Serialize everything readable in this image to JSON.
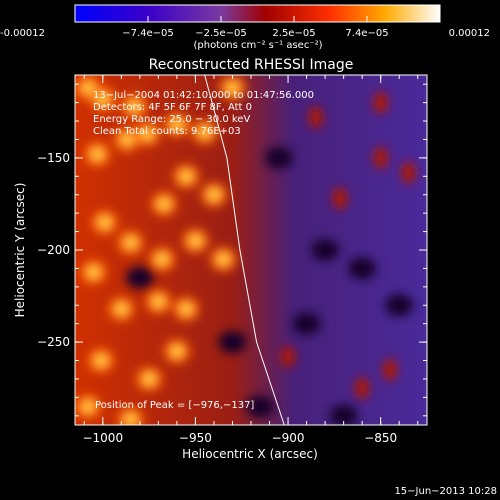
{
  "colorbar": {
    "tick_labels": [
      "-0.00012",
      "−7.4e−05",
      "−2.5e−05",
      "2.5e−05",
      "7.4e−05",
      "0.00012"
    ],
    "units": "(photons cm⁻² s⁻¹ asec⁻²)",
    "range": [
      -0.00012,
      0.00012
    ]
  },
  "chart_data": {
    "type": "heatmap",
    "title": "Reconstructed RHESSI Image",
    "xlabel": "Heliocentric X (arcsec)",
    "ylabel": "Heliocentric Y (arcsec)",
    "xlim": [
      -1015,
      -825
    ],
    "ylim": [
      -295,
      -105
    ],
    "x_ticks": [
      -1000,
      -950,
      -900,
      -850
    ],
    "y_ticks": [
      -250,
      -200,
      -150
    ],
    "x_tick_labels": [
      "−1000",
      "−950",
      "−900",
      "−850"
    ],
    "y_tick_labels": [
      "−250",
      "−200",
      "−150"
    ],
    "annotations": [
      "13−Jul−2004 01:42:10.000 to 01:47:56.000",
      "Detectors: 4F 5F 6F 7F 8F, Att 0",
      "Energy Range: 25.0 − 30.0 keV",
      "Clean    Total counts: 9.76E+03"
    ],
    "peak_label": "Position of Peak = [−976,−137]",
    "peak": [
      -976,
      -137
    ],
    "limb": [
      [
        -945,
        -105
      ],
      [
        -933,
        -150
      ],
      [
        -926,
        -200
      ],
      [
        -917,
        -250
      ],
      [
        -902,
        -295
      ]
    ],
    "hot_blobs": [
      [
        -1008,
        -112
      ],
      [
        -1000,
        -118
      ],
      [
        -983,
        -122
      ],
      [
        -976,
        -137
      ],
      [
        -987,
        -140
      ],
      [
        -1003,
        -148
      ],
      [
        -960,
        -132
      ],
      [
        -945,
        -136
      ],
      [
        -955,
        -160
      ],
      [
        -967,
        -175
      ],
      [
        -940,
        -170
      ],
      [
        -999,
        -185
      ],
      [
        -985,
        -196
      ],
      [
        -968,
        -205
      ],
      [
        -950,
        -195
      ],
      [
        -1005,
        -212
      ],
      [
        -990,
        -232
      ],
      [
        -970,
        -228
      ],
      [
        -955,
        -232
      ],
      [
        -1001,
        -260
      ],
      [
        -975,
        -270
      ],
      [
        -960,
        -255
      ],
      [
        -1008,
        -285
      ],
      [
        -985,
        -292
      ],
      [
        -930,
        -112
      ],
      [
        -935,
        -205
      ],
      [
        -885,
        -128
      ],
      [
        -872,
        -172
      ],
      [
        -850,
        -120
      ],
      [
        -850,
        -150
      ],
      [
        -835,
        -158
      ],
      [
        -845,
        -265
      ],
      [
        -860,
        -275
      ],
      [
        -900,
        -258
      ]
    ],
    "dark_blobs": [
      [
        -905,
        -150
      ],
      [
        -880,
        -200
      ],
      [
        -860,
        -210
      ],
      [
        -890,
        -240
      ],
      [
        -915,
        -285
      ],
      [
        -870,
        -290
      ],
      [
        -840,
        -230
      ],
      [
        -930,
        -250
      ],
      [
        -980,
        -215
      ]
    ]
  },
  "footer": {
    "timestamp": "15−Jun−2013 10:28"
  }
}
